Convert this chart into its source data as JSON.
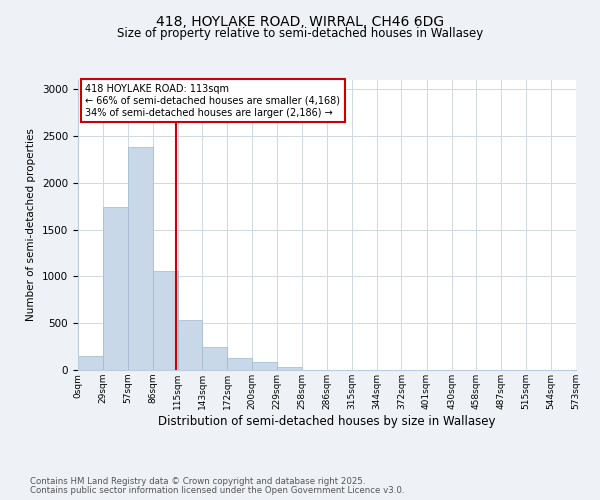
{
  "title1": "418, HOYLAKE ROAD, WIRRAL, CH46 6DG",
  "title2": "Size of property relative to semi-detached houses in Wallasey",
  "xlabel": "Distribution of semi-detached houses by size in Wallasey",
  "ylabel": "Number of semi-detached properties",
  "bar_values": [
    155,
    1740,
    2380,
    1060,
    530,
    245,
    130,
    90,
    30,
    5,
    0,
    0,
    0,
    0,
    0,
    0,
    0,
    0,
    0,
    0
  ],
  "bin_labels": [
    "0sqm",
    "29sqm",
    "57sqm",
    "86sqm",
    "115sqm",
    "143sqm",
    "172sqm",
    "200sqm",
    "229sqm",
    "258sqm",
    "286sqm",
    "315sqm",
    "344sqm",
    "372sqm",
    "401sqm",
    "430sqm",
    "458sqm",
    "487sqm",
    "515sqm",
    "544sqm",
    "573sqm"
  ],
  "bin_edges": [
    0,
    29,
    57,
    86,
    115,
    143,
    172,
    200,
    229,
    258,
    286,
    315,
    344,
    372,
    401,
    430,
    458,
    487,
    515,
    544,
    573
  ],
  "bar_color": "#c8d8e8",
  "bar_edge_color": "#a0b8cc",
  "vline_x": 113,
  "vline_color": "#cc0000",
  "annotation_title": "418 HOYLAKE ROAD: 113sqm",
  "annotation_line1": "← 66% of semi-detached houses are smaller (4,168)",
  "annotation_line2": "34% of semi-detached houses are larger (2,186) →",
  "annotation_box_color": "#cc0000",
  "ylim": [
    0,
    3100
  ],
  "yticks": [
    0,
    500,
    1000,
    1500,
    2000,
    2500,
    3000
  ],
  "footer1": "Contains HM Land Registry data © Crown copyright and database right 2025.",
  "footer2": "Contains public sector information licensed under the Open Government Licence v3.0.",
  "bg_color": "#eef2f7",
  "plot_bg_color": "#ffffff",
  "grid_color": "#cdd8e3"
}
